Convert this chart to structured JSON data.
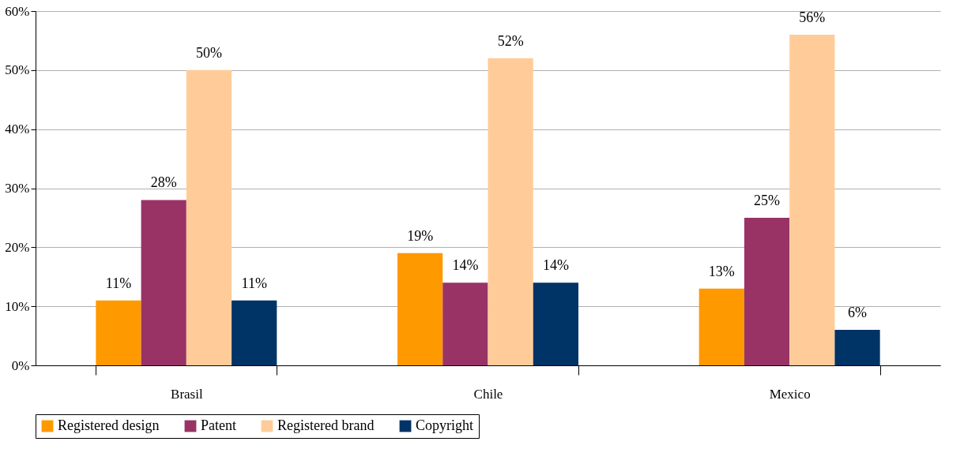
{
  "chart_data": {
    "type": "bar",
    "categories": [
      "Brasil",
      "Chile",
      "Mexico"
    ],
    "series": [
      {
        "name": "Registered design",
        "color": "#ff9900",
        "values": [
          11,
          19,
          13
        ],
        "value_labels": [
          "11%",
          "19%",
          "13%"
        ]
      },
      {
        "name": "Patent",
        "color": "#993366",
        "values": [
          28,
          14,
          25
        ],
        "value_labels": [
          "28%",
          "14%",
          "25%"
        ]
      },
      {
        "name": "Registered brand",
        "color": "#ffcc99",
        "values": [
          50,
          52,
          56
        ],
        "value_labels": [
          "50%",
          "52%",
          "56%"
        ]
      },
      {
        "name": "Copyright",
        "color": "#003366",
        "values": [
          11,
          14,
          6
        ],
        "value_labels": [
          "11%",
          "14%",
          "6%"
        ]
      }
    ],
    "ylim": [
      0,
      60
    ],
    "yticks": [
      {
        "value": 0,
        "label": "0%"
      },
      {
        "value": 10,
        "label": "10%"
      },
      {
        "value": 20,
        "label": "20%"
      },
      {
        "value": 30,
        "label": "30%"
      },
      {
        "value": 40,
        "label": "40%"
      },
      {
        "value": 50,
        "label": "50%"
      },
      {
        "value": 60,
        "label": "60%"
      }
    ],
    "grid": "y",
    "legend": "bottom"
  }
}
